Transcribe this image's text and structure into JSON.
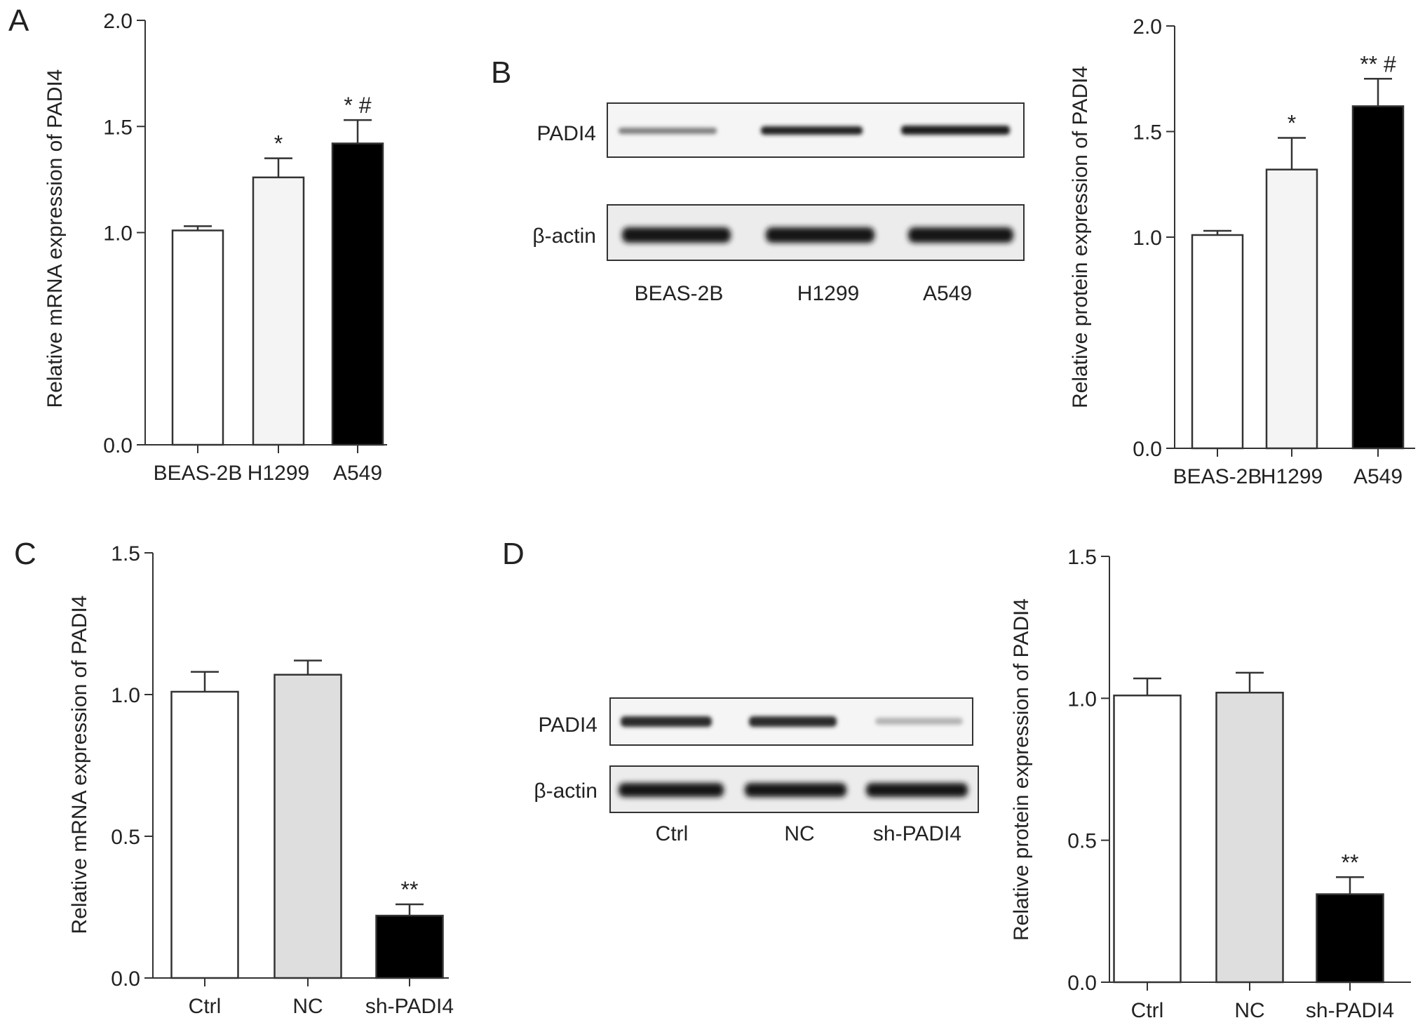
{
  "panels": [
    {
      "letter": "A"
    },
    {
      "letter": "B"
    },
    {
      "letter": "C"
    },
    {
      "letter": "D"
    }
  ],
  "blots": [
    {
      "panel": "B",
      "rows": [
        "PADI4",
        "β-actin"
      ],
      "lanes": [
        "BEAS-2B",
        "H1299",
        "A549"
      ]
    },
    {
      "panel": "D",
      "rows": [
        "PADI4",
        "β-actin"
      ],
      "lanes": [
        "Ctrl",
        "NC",
        "sh-PADI4"
      ]
    }
  ],
  "chart_data": [
    {
      "type": "bar",
      "panel": "A",
      "ylabel": "Relative mRNA expression of PADI4",
      "xlabel": "",
      "categories": [
        "BEAS-2B",
        "H1299",
        "A549"
      ],
      "values": [
        1.01,
        1.26,
        1.42
      ],
      "errors": [
        0.02,
        0.09,
        0.11
      ],
      "annotations": [
        "",
        "*",
        "* #"
      ],
      "bar_colors": [
        "#ffffff",
        "#f4f4f4",
        "#000000"
      ],
      "ylim": [
        0,
        2.0
      ],
      "yticks": [
        "0.0",
        "1.0",
        "1.5",
        "2.0"
      ]
    },
    {
      "type": "bar",
      "panel": "B",
      "ylabel": "Relative protein expression of PADI4",
      "xlabel": "",
      "categories": [
        "BEAS-2B",
        "H1299",
        "A549"
      ],
      "values": [
        1.01,
        1.32,
        1.62
      ],
      "errors": [
        0.02,
        0.15,
        0.13
      ],
      "annotations": [
        "",
        "*",
        "** #"
      ],
      "bar_colors": [
        "#ffffff",
        "#f4f4f4",
        "#000000"
      ],
      "ylim": [
        0,
        2.0
      ],
      "yticks": [
        "0.0",
        "1.0",
        "1.5",
        "2.0"
      ]
    },
    {
      "type": "bar",
      "panel": "C",
      "ylabel": "Relative mRNA expression of PADI4",
      "xlabel": "",
      "categories": [
        "Ctrl",
        "NC",
        "sh-PADI4"
      ],
      "values": [
        1.01,
        1.07,
        0.22
      ],
      "errors": [
        0.07,
        0.05,
        0.04
      ],
      "annotations": [
        "",
        "",
        "**"
      ],
      "bar_colors": [
        "#ffffff",
        "#dedede",
        "#000000"
      ],
      "ylim": [
        0,
        1.5
      ],
      "yticks": [
        "0.0",
        "0.5",
        "1.0",
        "1.5"
      ]
    },
    {
      "type": "bar",
      "panel": "D",
      "ylabel": "Relative protein expression of PADI4",
      "xlabel": "",
      "categories": [
        "Ctrl",
        "NC",
        "sh-PADI4"
      ],
      "values": [
        1.01,
        1.02,
        0.31
      ],
      "errors": [
        0.06,
        0.07,
        0.06
      ],
      "annotations": [
        "",
        "",
        "**"
      ],
      "bar_colors": [
        "#ffffff",
        "#dedede",
        "#000000"
      ],
      "ylim": [
        0,
        1.5
      ],
      "yticks": [
        "0.0",
        "0.5",
        "1.0",
        "1.5"
      ]
    }
  ]
}
